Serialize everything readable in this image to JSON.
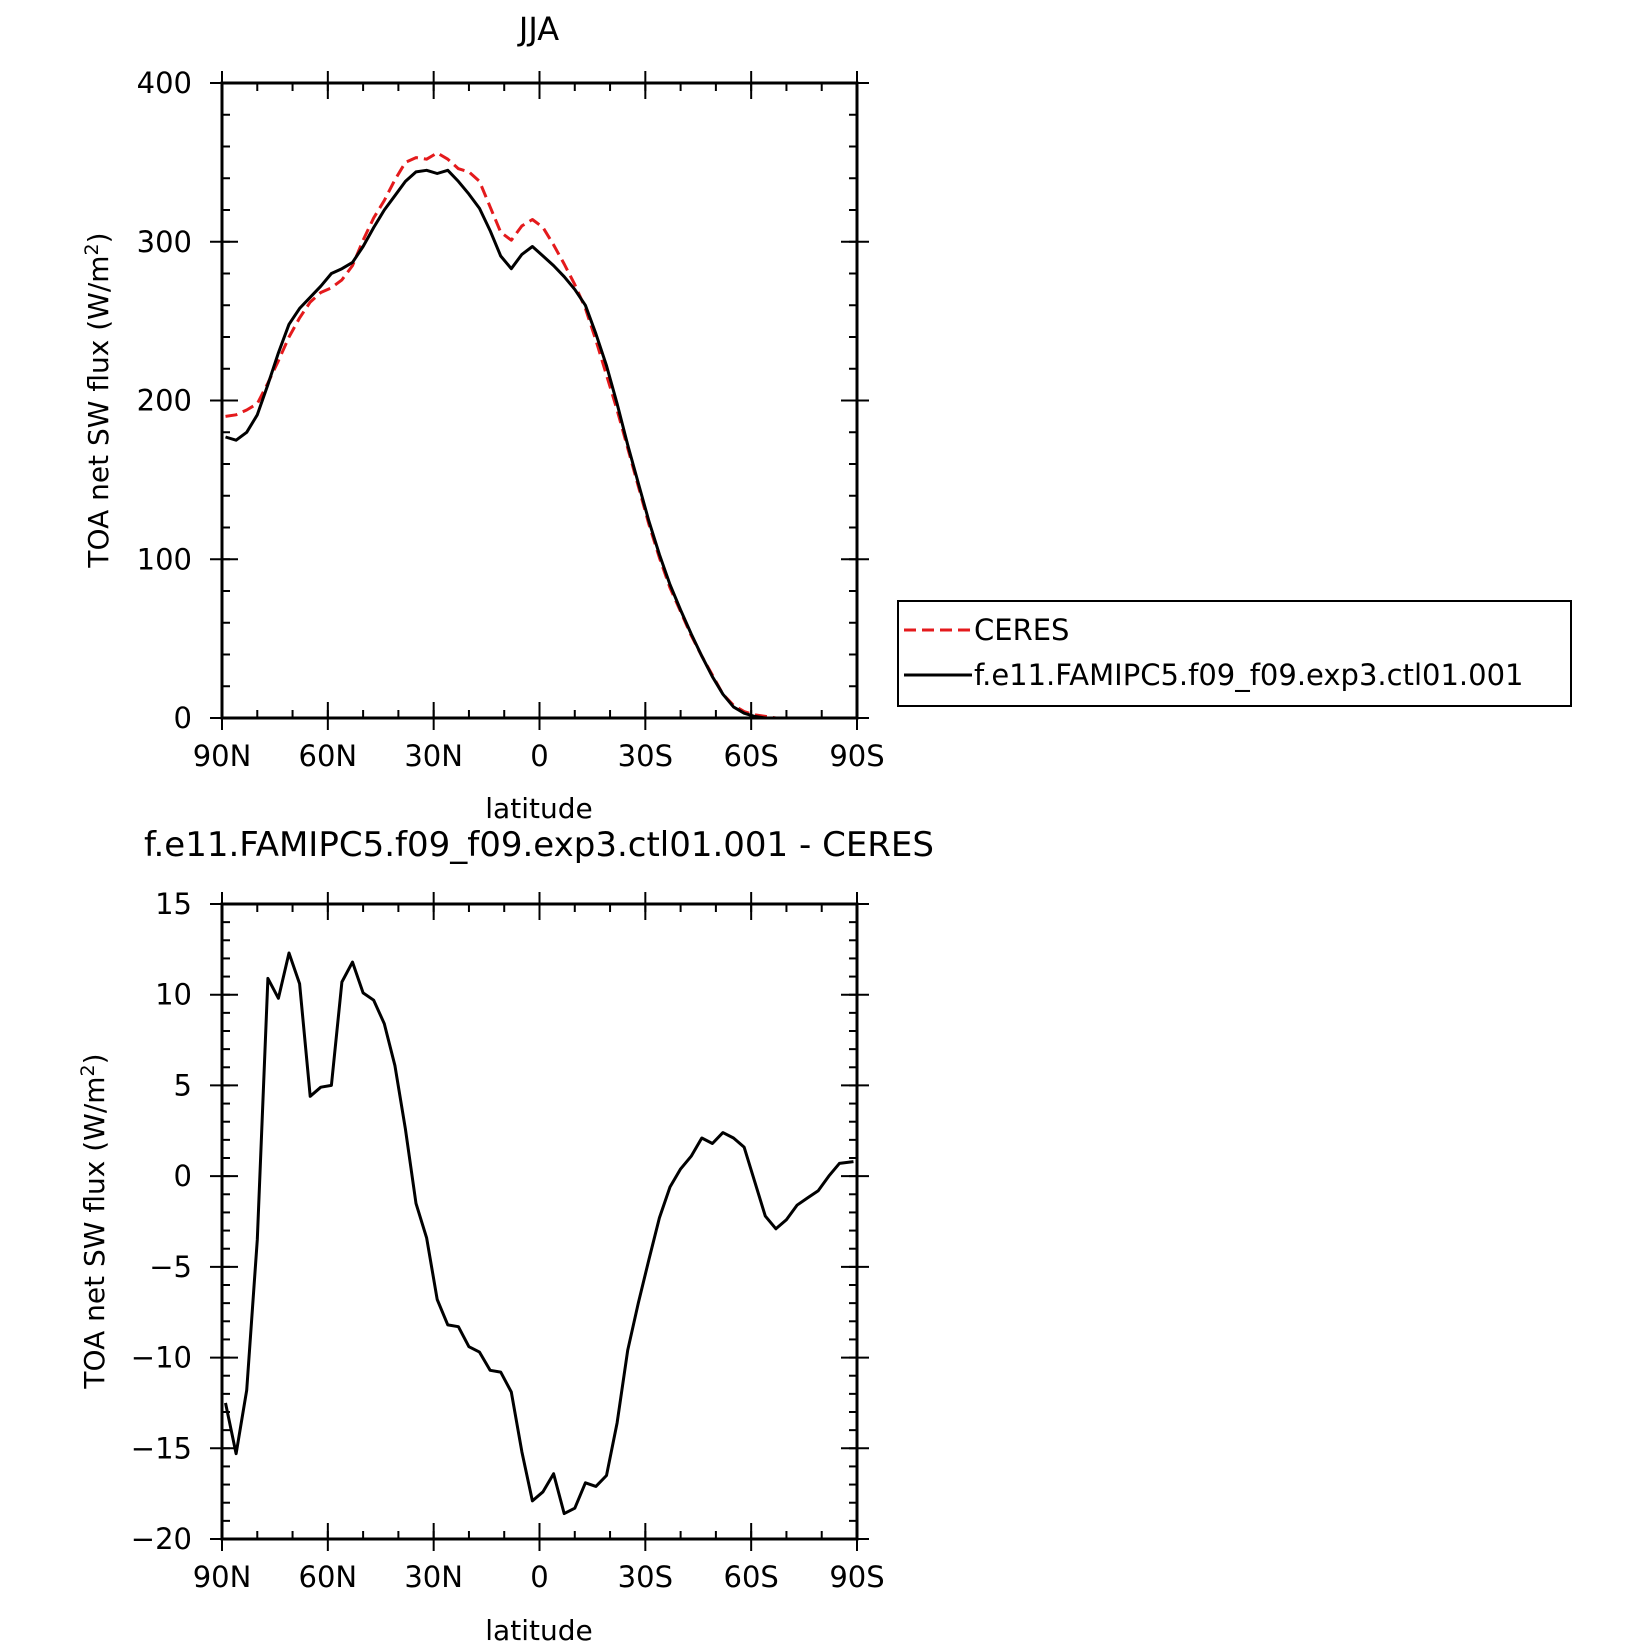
{
  "chart_data": [
    {
      "type": "line",
      "title": "JJA",
      "xlabel": "latitude",
      "ylabel_main": "TOA net SW flux (W/m",
      "ylabel_sup": "2",
      "ylabel_close": ")",
      "xlim": [
        90,
        -90
      ],
      "ylim": [
        0,
        400
      ],
      "x_ticks": [
        90,
        60,
        30,
        0,
        -30,
        -60,
        -90
      ],
      "x_tick_labels": [
        "90N",
        "60N",
        "30N",
        "0",
        "30S",
        "60S",
        "90S"
      ],
      "y_ticks": [
        0,
        100,
        200,
        300,
        400
      ],
      "y_tick_labels": [
        "0",
        "100",
        "200",
        "300",
        "400"
      ],
      "y_minor_step": 20,
      "x_minor_step": 10,
      "legend_position": "right",
      "series": [
        {
          "name": "CERES",
          "color": "#e41a1c",
          "dash": true,
          "x": [
            89,
            86,
            83,
            80,
            77,
            74,
            71,
            68,
            65,
            62,
            59,
            56,
            53,
            50,
            47,
            44,
            41,
            38,
            35,
            32,
            29,
            26,
            23,
            20,
            17,
            14,
            11,
            8,
            5,
            2,
            -1,
            -4,
            -7,
            -10,
            -13,
            -16,
            -19,
            -22,
            -25,
            -28,
            -31,
            -34,
            -37,
            -40,
            -43,
            -46,
            -49,
            -52,
            -55,
            -58,
            -61,
            -64,
            -67,
            -70,
            -73,
            -76,
            -79,
            -82,
            -85,
            -89
          ],
          "y": [
            190,
            191,
            194,
            198,
            211,
            225,
            240,
            252,
            262,
            268,
            271,
            276,
            285,
            301,
            315,
            326,
            339,
            350,
            353,
            352,
            356,
            352,
            346,
            344,
            338,
            322,
            306,
            301,
            310,
            314,
            309,
            298,
            286,
            273,
            258,
            238,
            216,
            194,
            170,
            146,
            122,
            101,
            82,
            67,
            52,
            39,
            27,
            15,
            8,
            4,
            2,
            1,
            0,
            0,
            0,
            0,
            0,
            0,
            0,
            0
          ]
        },
        {
          "name": "f.e11.FAMIPC5.f09_f09.exp3.ctl01.001",
          "color": "#000000",
          "dash": false,
          "x": [
            89,
            86,
            83,
            80,
            77,
            74,
            71,
            68,
            65,
            62,
            59,
            56,
            53,
            50,
            47,
            44,
            41,
            38,
            35,
            32,
            29,
            26,
            23,
            20,
            17,
            14,
            11,
            8,
            5,
            2,
            -1,
            -4,
            -7,
            -10,
            -13,
            -16,
            -19,
            -22,
            -25,
            -28,
            -31,
            -34,
            -37,
            -40,
            -43,
            -46,
            -49,
            -52,
            -55,
            -58,
            -61,
            -64,
            -67,
            -70,
            -73,
            -76,
            -79,
            -82,
            -85,
            -89
          ],
          "y": [
            177,
            175,
            180,
            191,
            210,
            230,
            248,
            258,
            265,
            272,
            280,
            283,
            287,
            297,
            309,
            320,
            329,
            338,
            344,
            345,
            343,
            345,
            338,
            330,
            321,
            307,
            291,
            283,
            292,
            297,
            291,
            285,
            278,
            270,
            260,
            242,
            222,
            198,
            172,
            148,
            124,
            103,
            84,
            68,
            53,
            39,
            26,
            15,
            7,
            3,
            1,
            0,
            0,
            0,
            0,
            0,
            0,
            0,
            0,
            0
          ]
        }
      ]
    },
    {
      "type": "line",
      "title": "f.e11.FAMIPC5.f09_f09.exp3.ctl01.001 - CERES",
      "xlabel": "latitude",
      "ylabel_main": "TOA net SW flux (W/m",
      "ylabel_sup": "2",
      "ylabel_close": ")",
      "xlim": [
        90,
        -90
      ],
      "ylim": [
        -20,
        15
      ],
      "x_ticks": [
        90,
        60,
        30,
        0,
        -30,
        -60,
        -90
      ],
      "x_tick_labels": [
        "90N",
        "60N",
        "30N",
        "0",
        "30S",
        "60S",
        "90S"
      ],
      "y_ticks": [
        -20,
        -15,
        -10,
        -5,
        0,
        5,
        10,
        15
      ],
      "y_tick_labels": [
        "−20",
        "−15",
        "−10",
        "−5",
        "0",
        "5",
        "10",
        "15"
      ],
      "y_minor_step": 1,
      "x_minor_step": 10,
      "series": [
        {
          "color": "#000000",
          "x": [
            89,
            86,
            83,
            80,
            77,
            74,
            71,
            68,
            65,
            62,
            59,
            56,
            53,
            50,
            47,
            44,
            41,
            38,
            35,
            32,
            29,
            26,
            23,
            20,
            17,
            14,
            11,
            8,
            5,
            2,
            -1,
            -4,
            -7,
            -10,
            -13,
            -16,
            -19,
            -22,
            -25,
            -28,
            -31,
            -34,
            -37,
            -40,
            -43,
            -46,
            -49,
            -52,
            -55,
            -58,
            -61,
            -64,
            -67,
            -70,
            -73,
            -76,
            -79,
            -82,
            -85,
            -89
          ],
          "y": [
            -12.5,
            -15.3,
            -11.8,
            -3.5,
            10.9,
            9.8,
            12.3,
            10.6,
            4.4,
            4.9,
            5.0,
            10.7,
            11.8,
            10.1,
            9.7,
            8.4,
            6.1,
            2.6,
            -1.5,
            -3.4,
            -6.8,
            -8.2,
            -8.3,
            -9.4,
            -9.7,
            -10.7,
            -10.8,
            -11.9,
            -15.2,
            -17.9,
            -17.4,
            -16.4,
            -18.6,
            -18.3,
            -16.9,
            -17.1,
            -16.5,
            -13.6,
            -9.6,
            -7.0,
            -4.6,
            -2.3,
            -0.6,
            0.4,
            1.1,
            2.1,
            1.8,
            2.4,
            2.1,
            1.6,
            -0.3,
            -2.2,
            -2.9,
            -2.4,
            -1.6,
            -1.2,
            -0.8,
            0.0,
            0.7,
            0.8
          ]
        }
      ]
    }
  ],
  "legend": {
    "entries": [
      "CERES",
      "f.e11.FAMIPC5.f09_f09.exp3.ctl01.001"
    ]
  }
}
